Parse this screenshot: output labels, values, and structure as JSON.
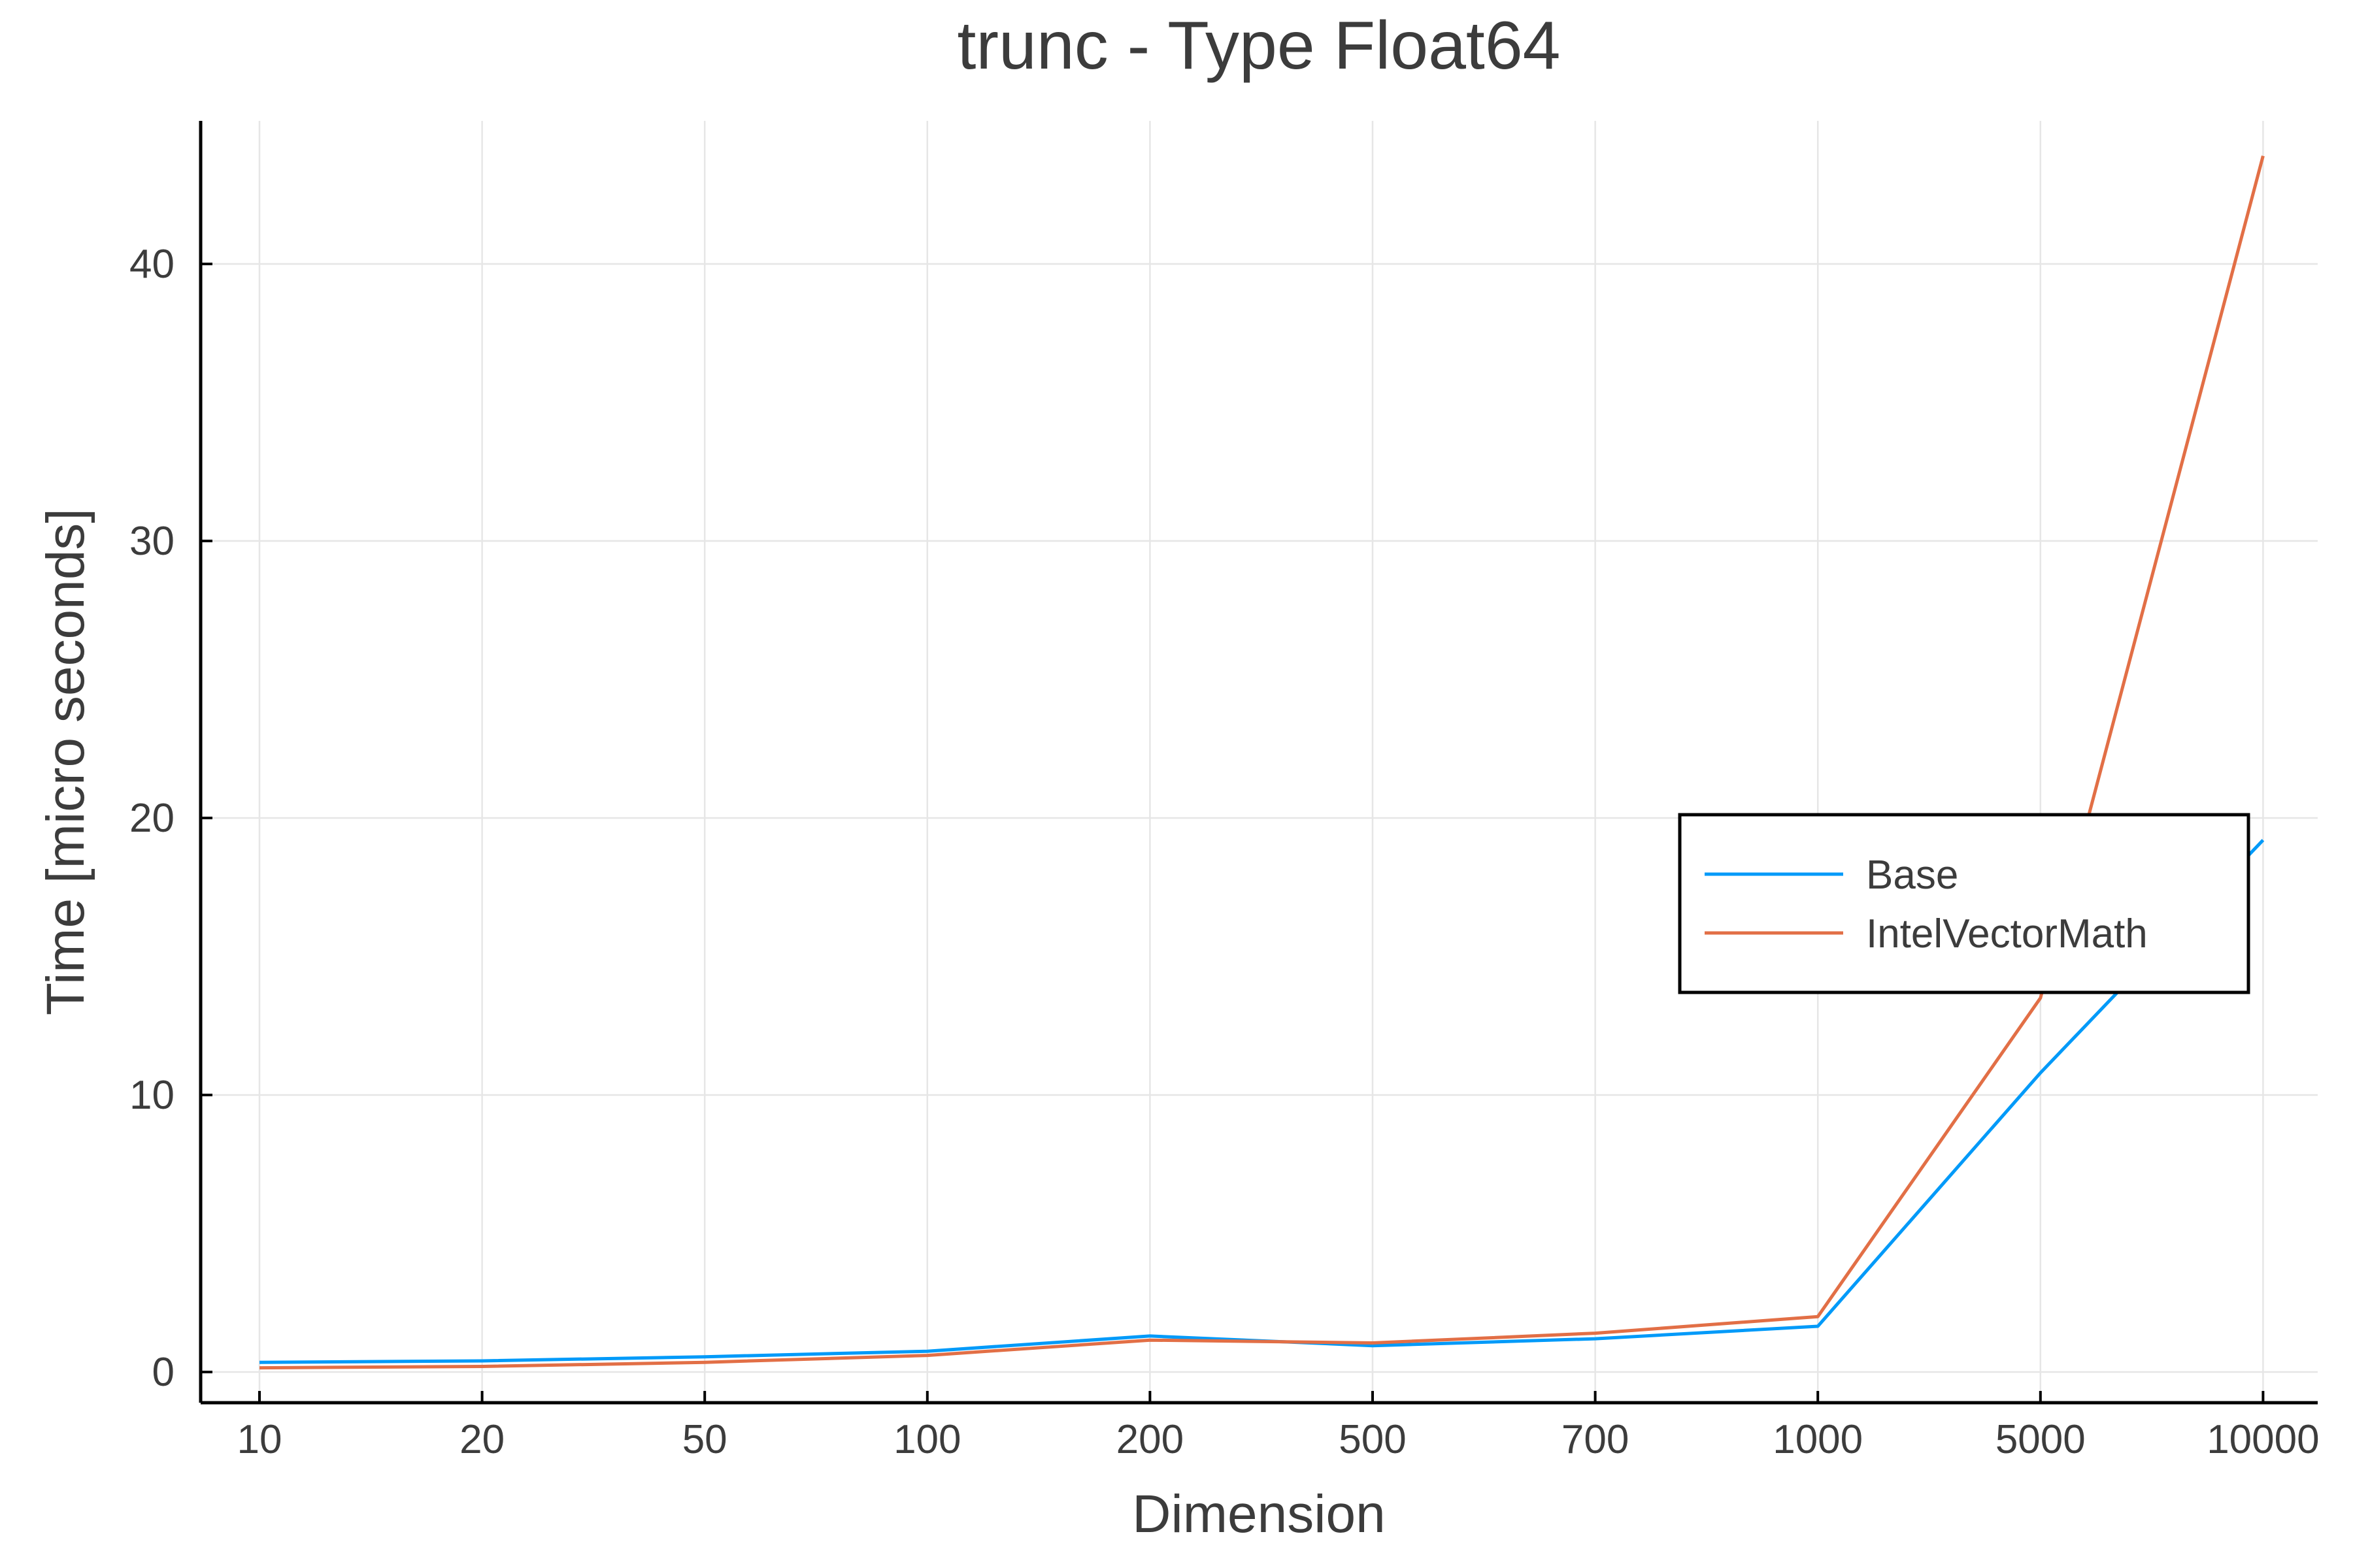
{
  "chart_data": {
    "type": "line",
    "title": "trunc - Type Float64",
    "xlabel": "Dimension",
    "ylabel": "Time [micro seconds]",
    "categories": [
      "10",
      "20",
      "50",
      "100",
      "200",
      "500",
      "700",
      "1000",
      "5000",
      "10000"
    ],
    "yticks": [
      0,
      10,
      20,
      30,
      40
    ],
    "ylim": [
      -1.1,
      45.2
    ],
    "grid": true,
    "legend_position": "right",
    "series": [
      {
        "name": "Base",
        "color": "#009af9",
        "values": [
          0.35,
          0.4,
          0.55,
          0.75,
          1.3,
          0.95,
          1.2,
          1.65,
          10.8,
          19.2
        ]
      },
      {
        "name": "IntelVectorMath",
        "color": "#e26f46",
        "values": [
          0.15,
          0.2,
          0.35,
          0.6,
          1.15,
          1.05,
          1.4,
          2.0,
          13.5,
          43.9
        ]
      }
    ]
  }
}
